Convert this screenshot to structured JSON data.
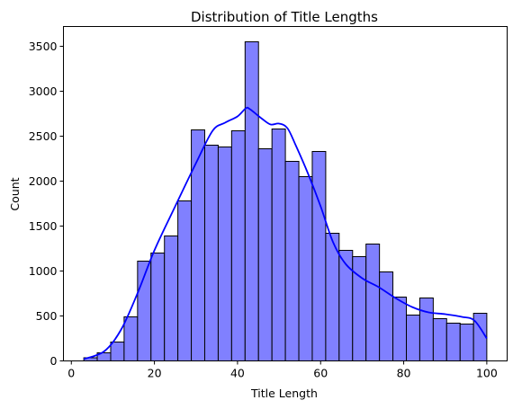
{
  "chart_data": {
    "type": "bar",
    "subtype": "histogram-with-kde",
    "title": "Distribution of Title Lengths",
    "xlabel": "Title Length",
    "ylabel": "Count",
    "xlim": [
      -1.9,
      104.9
    ],
    "ylim": [
      0,
      3720
    ],
    "xticks": [
      0,
      20,
      40,
      60,
      80,
      100
    ],
    "yticks": [
      0,
      500,
      1000,
      1500,
      2000,
      2500,
      3000,
      3500
    ],
    "grid": false,
    "legend": "none",
    "bar_color": "#8080ff",
    "kde_color": "#0000ff",
    "bin_edges": [
      3.0,
      6.23,
      9.47,
      12.7,
      15.94,
      19.17,
      22.41,
      25.64,
      28.88,
      32.11,
      35.35,
      38.58,
      41.82,
      45.05,
      48.29,
      51.52,
      54.76,
      57.99,
      61.23,
      64.46,
      67.7,
      70.93,
      74.17,
      77.4,
      80.64,
      83.87,
      87.11,
      90.34,
      93.58,
      96.81,
      100.0
    ],
    "counts": [
      35,
      90,
      210,
      490,
      1110,
      1200,
      1390,
      1780,
      2570,
      2400,
      2380,
      2560,
      3550,
      2360,
      2580,
      2220,
      2050,
      2330,
      1420,
      1230,
      1160,
      1300,
      990,
      710,
      510,
      700,
      470,
      420,
      410,
      530
    ],
    "kde": {
      "x": [
        3,
        8,
        12,
        16,
        20,
        25,
        30,
        34,
        37,
        40,
        42,
        43,
        46,
        48,
        50,
        52,
        54,
        57,
        60,
        63,
        66,
        70,
        74,
        78,
        82,
        86,
        90,
        94,
        97,
        100
      ],
      "y": [
        20,
        110,
        350,
        760,
        1230,
        1720,
        2200,
        2560,
        2650,
        2720,
        2810,
        2800,
        2690,
        2630,
        2640,
        2590,
        2400,
        2080,
        1720,
        1320,
        1080,
        920,
        820,
        700,
        600,
        540,
        520,
        490,
        450,
        250
      ]
    }
  }
}
